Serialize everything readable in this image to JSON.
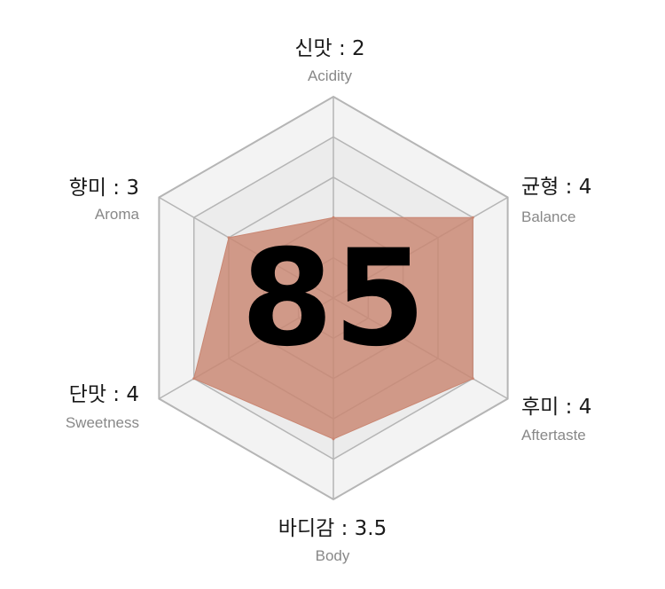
{
  "chart_data": {
    "type": "radar",
    "score": "85",
    "max_value": 5,
    "levels": 5,
    "fill_color": "#c98672",
    "grid_color": "#b5b5b5",
    "background_color": "#f3f3f3",
    "axes": [
      {
        "name": "신맛 : 2",
        "sub": "Acidity",
        "value": 2
      },
      {
        "name": "균형 : 4",
        "sub": "Balance",
        "value": 4
      },
      {
        "name": "후미 : 4",
        "sub": "Aftertaste",
        "value": 4
      },
      {
        "name": "바디감 : 3.5",
        "sub": "Body",
        "value": 3.5
      },
      {
        "name": "단맛 : 4",
        "sub": "Sweetness",
        "value": 4
      },
      {
        "name": "향미 : 3",
        "sub": "Aroma",
        "value": 3
      }
    ]
  }
}
